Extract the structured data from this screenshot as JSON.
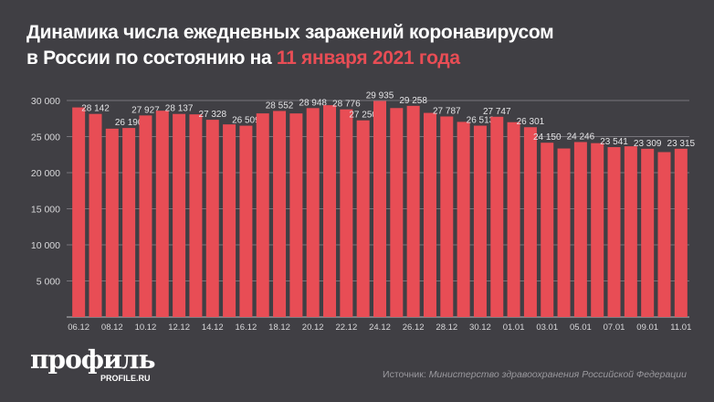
{
  "title": {
    "line1": "Динамика числа ежедневных заражений коронавирусом",
    "line2_prefix": "в России по состоянию на ",
    "line2_highlight": "11 января 2021 года"
  },
  "colors": {
    "background": "#403f44",
    "bar": "#e84d55",
    "highlight": "#e84d55",
    "text": "#ffffff",
    "grid": "#8a898e"
  },
  "chart_data": {
    "type": "bar",
    "xlabel": "",
    "ylabel": "",
    "ylim": [
      0,
      30000
    ],
    "yticks": [
      5000,
      10000,
      15000,
      20000,
      25000,
      30000
    ],
    "ytick_labels": [
      "5 000",
      "10 000",
      "15 000",
      "20 000",
      "25 000",
      "30 000"
    ],
    "grid": true,
    "categories": [
      "06.12",
      "07.12",
      "08.12",
      "09.12",
      "10.12",
      "11.12",
      "12.12",
      "13.12",
      "14.12",
      "15.12",
      "16.12",
      "17.12",
      "18.12",
      "19.12",
      "20.12",
      "21.12",
      "22.12",
      "23.12",
      "24.12",
      "25.12",
      "26.12",
      "27.12",
      "28.12",
      "29.12",
      "30.12",
      "31.12",
      "01.01",
      "02.01",
      "03.01",
      "04.01",
      "05.01",
      "06.01",
      "07.01",
      "08.01",
      "09.01",
      "10.01",
      "11.01"
    ],
    "xtick_labels_shown": [
      "06.12",
      "08.12",
      "10.12",
      "12.12",
      "14.12",
      "16.12",
      "18.12",
      "20.12",
      "22.12",
      "24.12",
      "26.12",
      "28.12",
      "30.12",
      "01.01",
      "03.01",
      "05.01",
      "07.01",
      "09.01",
      "11.01"
    ],
    "values": [
      29039,
      28142,
      26097,
      26190,
      27927,
      28585,
      28137,
      28080,
      27328,
      26689,
      26509,
      28214,
      28552,
      28209,
      28948,
      29350,
      28776,
      27250,
      29935,
      28953,
      29258,
      28284,
      27787,
      27039,
      26513,
      27747,
      26997,
      26301,
      24150,
      23351,
      24246,
      24092,
      23541,
      23652,
      23309,
      22851,
      23315
    ],
    "data_labels": [
      "",
      "28 142",
      "",
      "26 190",
      "27 927",
      "",
      "28 137",
      "",
      "27 328",
      "",
      "26 509",
      "",
      "28 552",
      "",
      "28 948",
      "",
      "28 776",
      "27 250",
      "29 935",
      "",
      "29 258",
      "",
      "27 787",
      "",
      "26 513",
      "27 747",
      "",
      "26 301",
      "24 150",
      "",
      "24 246",
      "",
      "23 541",
      "",
      "23 309",
      "",
      "23 315"
    ]
  },
  "logo": {
    "name": "профиль",
    "site": "PROFILE.RU"
  },
  "source": {
    "label": "Источник:",
    "text": "Министерство здравоохранения Российской Федерации"
  }
}
